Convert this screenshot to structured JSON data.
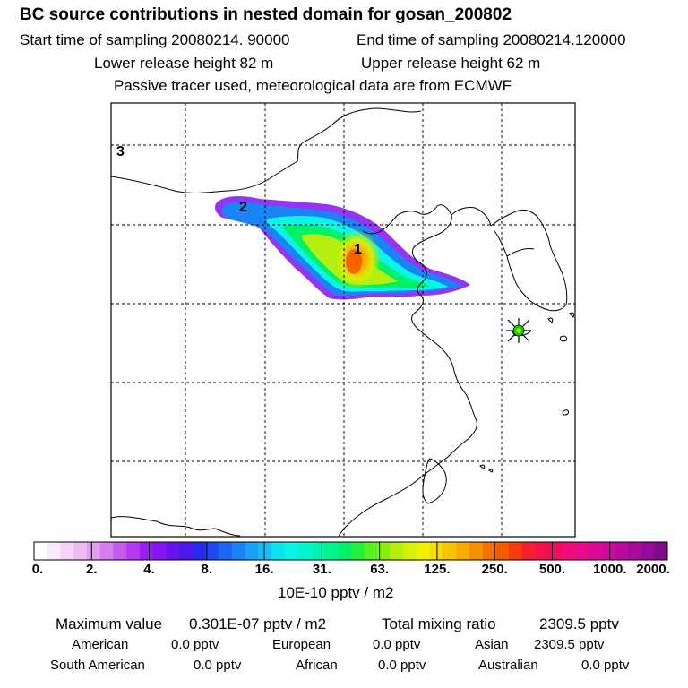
{
  "title": "BC  source contributions in nested domain for gosan_200802",
  "sampling": {
    "start": "Start time of sampling 20080214. 90000",
    "end": "End time of sampling 20080214.120000"
  },
  "release": {
    "lower": "Lower release height   82 m",
    "upper": "Upper release height   62 m"
  },
  "note": "Passive tracer used, meteorological data are from ECMWF",
  "map_labels": {
    "label_1": "1",
    "label_2": "2",
    "label_3": "3"
  },
  "colorbar": {
    "ticks": [
      "0.",
      "2.",
      "4.",
      "8.",
      "16.",
      "31.",
      "63.",
      "125.",
      "250.",
      "500.",
      "1000.",
      "2000."
    ],
    "units": "10E-10 pptv / m2",
    "colors": [
      "#ffffff",
      "#fbe8fb",
      "#f5d3f7",
      "#eebbf3",
      "#e39ef0",
      "#d57ef0",
      "#c55af0",
      "#b838f2",
      "#9b1df5",
      "#8314f3",
      "#6a10f0",
      "#4d17ee",
      "#2a2aef",
      "#2148f2",
      "#1d66f5",
      "#1a84f5",
      "#1aa1f5",
      "#19c0f5",
      "#0ee3f0",
      "#08f5e8",
      "#05f5d0",
      "#02f5b0",
      "#00f590",
      "#00f068",
      "#20f040",
      "#55f020",
      "#88f010",
      "#b5f010",
      "#d8f008",
      "#f0f000",
      "#f5dc00",
      "#f7c400",
      "#f7aa00",
      "#f79000",
      "#f57400",
      "#f55a00",
      "#f43c10",
      "#f42030",
      "#f51048",
      "#f50a62",
      "#f20a78",
      "#e80a88",
      "#da0a95",
      "#cc0a9e",
      "#bb0aa0",
      "#a80aa0",
      "#950a98",
      "#7e0a8a"
    ]
  },
  "stats": {
    "max_label": "Maximum value",
    "max_value": "0.301E-07 pptv / m2",
    "total_label": "Total mixing ratio",
    "total_value": "2309.5 pptv",
    "regions": [
      {
        "name": "American",
        "value": "0.0 pptv"
      },
      {
        "name": "European",
        "value": "0.0 pptv"
      },
      {
        "name": "Asian",
        "value": "2309.5 pptv"
      },
      {
        "name": "South American",
        "value": "0.0 pptv"
      },
      {
        "name": "African",
        "value": "0.0 pptv"
      },
      {
        "name": "Australian",
        "value": "0.0 pptv"
      }
    ]
  }
}
